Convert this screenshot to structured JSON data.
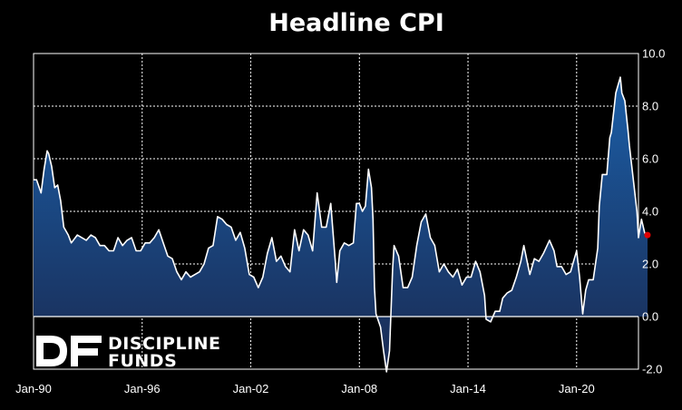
{
  "chart_data": {
    "type": "area",
    "title": "Headline CPI",
    "xlabel": "",
    "ylabel": "",
    "x_tick_labels": [
      "Jan-90",
      "Jan-96",
      "Jan-02",
      "Jan-08",
      "Jan-14",
      "Jan-20"
    ],
    "x_tick_years": [
      1990,
      1996,
      2002,
      2008,
      2014,
      2020
    ],
    "y_tick_labels": [
      "-2.0",
      "0.0",
      "2.0",
      "4.0",
      "6.0",
      "8.0",
      "10.0"
    ],
    "ylim": [
      -2,
      10
    ],
    "xlim": [
      "1990-01",
      "2023-06"
    ],
    "grid": true,
    "grid_style": "dotted",
    "y_axis_side": "right",
    "fill_gradient": [
      "#1b5fa8",
      "#1a2a52"
    ],
    "line_color": "#ffffff",
    "last_point_color": "#e00000",
    "series": [
      {
        "values": [
          [
            "1990-01",
            5.2
          ],
          [
            "1990-03",
            5.2
          ],
          [
            "1990-06",
            4.7
          ],
          [
            "1990-08",
            5.6
          ],
          [
            "1990-10",
            6.3
          ],
          [
            "1990-11",
            6.2
          ],
          [
            "1991-01",
            5.7
          ],
          [
            "1991-03",
            4.9
          ],
          [
            "1991-05",
            5.0
          ],
          [
            "1991-07",
            4.4
          ],
          [
            "1991-09",
            3.4
          ],
          [
            "1991-12",
            3.1
          ],
          [
            "1992-02",
            2.8
          ],
          [
            "1992-06",
            3.1
          ],
          [
            "1992-12",
            2.9
          ],
          [
            "1993-03",
            3.1
          ],
          [
            "1993-06",
            3.0
          ],
          [
            "1993-09",
            2.7
          ],
          [
            "1993-12",
            2.7
          ],
          [
            "1994-03",
            2.5
          ],
          [
            "1994-06",
            2.5
          ],
          [
            "1994-09",
            3.0
          ],
          [
            "1994-12",
            2.7
          ],
          [
            "1995-03",
            2.9
          ],
          [
            "1995-06",
            3.0
          ],
          [
            "1995-09",
            2.5
          ],
          [
            "1995-12",
            2.5
          ],
          [
            "1996-03",
            2.8
          ],
          [
            "1996-06",
            2.8
          ],
          [
            "1996-09",
            3.0
          ],
          [
            "1996-12",
            3.3
          ],
          [
            "1997-03",
            2.8
          ],
          [
            "1997-06",
            2.3
          ],
          [
            "1997-09",
            2.2
          ],
          [
            "1997-12",
            1.7
          ],
          [
            "1998-03",
            1.4
          ],
          [
            "1998-06",
            1.7
          ],
          [
            "1998-09",
            1.5
          ],
          [
            "1998-12",
            1.6
          ],
          [
            "1999-03",
            1.7
          ],
          [
            "1999-06",
            2.0
          ],
          [
            "1999-09",
            2.6
          ],
          [
            "1999-12",
            2.7
          ],
          [
            "2000-03",
            3.8
          ],
          [
            "2000-06",
            3.7
          ],
          [
            "2000-09",
            3.5
          ],
          [
            "2000-12",
            3.4
          ],
          [
            "2001-03",
            2.9
          ],
          [
            "2001-06",
            3.2
          ],
          [
            "2001-09",
            2.6
          ],
          [
            "2001-12",
            1.6
          ],
          [
            "2002-03",
            1.5
          ],
          [
            "2002-06",
            1.1
          ],
          [
            "2002-09",
            1.5
          ],
          [
            "2002-12",
            2.4
          ],
          [
            "2003-03",
            3.0
          ],
          [
            "2003-06",
            2.1
          ],
          [
            "2003-09",
            2.3
          ],
          [
            "2003-12",
            1.9
          ],
          [
            "2004-03",
            1.7
          ],
          [
            "2004-06",
            3.3
          ],
          [
            "2004-09",
            2.5
          ],
          [
            "2004-12",
            3.3
          ],
          [
            "2005-03",
            3.1
          ],
          [
            "2005-06",
            2.5
          ],
          [
            "2005-09",
            4.7
          ],
          [
            "2005-12",
            3.4
          ],
          [
            "2006-03",
            3.4
          ],
          [
            "2006-06",
            4.3
          ],
          [
            "2006-09",
            2.1
          ],
          [
            "2006-10",
            1.3
          ],
          [
            "2006-12",
            2.5
          ],
          [
            "2007-03",
            2.8
          ],
          [
            "2007-06",
            2.7
          ],
          [
            "2007-09",
            2.8
          ],
          [
            "2007-11",
            4.3
          ],
          [
            "2008-01",
            4.3
          ],
          [
            "2008-03",
            4.0
          ],
          [
            "2008-05",
            4.2
          ],
          [
            "2008-07",
            5.6
          ],
          [
            "2008-09",
            4.9
          ],
          [
            "2008-10",
            3.7
          ],
          [
            "2008-11",
            1.1
          ],
          [
            "2008-12",
            0.1
          ],
          [
            "2009-03",
            -0.4
          ],
          [
            "2009-05",
            -1.3
          ],
          [
            "2009-07",
            -2.1
          ],
          [
            "2009-09",
            -1.3
          ],
          [
            "2009-11",
            1.8
          ],
          [
            "2009-12",
            2.7
          ],
          [
            "2010-03",
            2.3
          ],
          [
            "2010-06",
            1.1
          ],
          [
            "2010-09",
            1.1
          ],
          [
            "2010-12",
            1.5
          ],
          [
            "2011-03",
            2.7
          ],
          [
            "2011-06",
            3.6
          ],
          [
            "2011-09",
            3.9
          ],
          [
            "2011-12",
            3.0
          ],
          [
            "2012-03",
            2.7
          ],
          [
            "2012-06",
            1.7
          ],
          [
            "2012-09",
            2.0
          ],
          [
            "2012-12",
            1.7
          ],
          [
            "2013-03",
            1.5
          ],
          [
            "2013-06",
            1.8
          ],
          [
            "2013-09",
            1.2
          ],
          [
            "2013-12",
            1.5
          ],
          [
            "2014-03",
            1.5
          ],
          [
            "2014-06",
            2.1
          ],
          [
            "2014-09",
            1.7
          ],
          [
            "2014-12",
            0.8
          ],
          [
            "2015-01",
            -0.1
          ],
          [
            "2015-04",
            -0.2
          ],
          [
            "2015-07",
            0.2
          ],
          [
            "2015-10",
            0.2
          ],
          [
            "2015-12",
            0.7
          ],
          [
            "2016-03",
            0.9
          ],
          [
            "2016-06",
            1.0
          ],
          [
            "2016-09",
            1.5
          ],
          [
            "2016-12",
            2.1
          ],
          [
            "2017-02",
            2.7
          ],
          [
            "2017-06",
            1.6
          ],
          [
            "2017-09",
            2.2
          ],
          [
            "2017-12",
            2.1
          ],
          [
            "2018-03",
            2.4
          ],
          [
            "2018-07",
            2.9
          ],
          [
            "2018-10",
            2.5
          ],
          [
            "2018-12",
            1.9
          ],
          [
            "2019-03",
            1.9
          ],
          [
            "2019-06",
            1.6
          ],
          [
            "2019-09",
            1.7
          ],
          [
            "2019-12",
            2.3
          ],
          [
            "2020-01",
            2.5
          ],
          [
            "2020-03",
            1.5
          ],
          [
            "2020-05",
            0.1
          ],
          [
            "2020-07",
            1.0
          ],
          [
            "2020-09",
            1.4
          ],
          [
            "2020-12",
            1.4
          ],
          [
            "2021-03",
            2.6
          ],
          [
            "2021-04",
            4.2
          ],
          [
            "2021-06",
            5.4
          ],
          [
            "2021-09",
            5.4
          ],
          [
            "2021-11",
            6.8
          ],
          [
            "2021-12",
            7.0
          ],
          [
            "2022-03",
            8.5
          ],
          [
            "2022-06",
            9.1
          ],
          [
            "2022-07",
            8.5
          ],
          [
            "2022-09",
            8.2
          ],
          [
            "2022-11",
            7.1
          ],
          [
            "2022-12",
            6.5
          ],
          [
            "2023-03",
            5.0
          ],
          [
            "2023-05",
            4.0
          ],
          [
            "2023-06",
            3.0
          ],
          [
            "2023-08",
            3.7
          ],
          [
            "2023-10",
            3.2
          ],
          [
            "2023-11",
            3.1
          ],
          [
            "2023-12",
            3.1
          ]
        ]
      }
    ]
  },
  "brand": {
    "logo_letters": "DF",
    "line1": "DISCIPLINE",
    "line2": "FUNDS"
  }
}
